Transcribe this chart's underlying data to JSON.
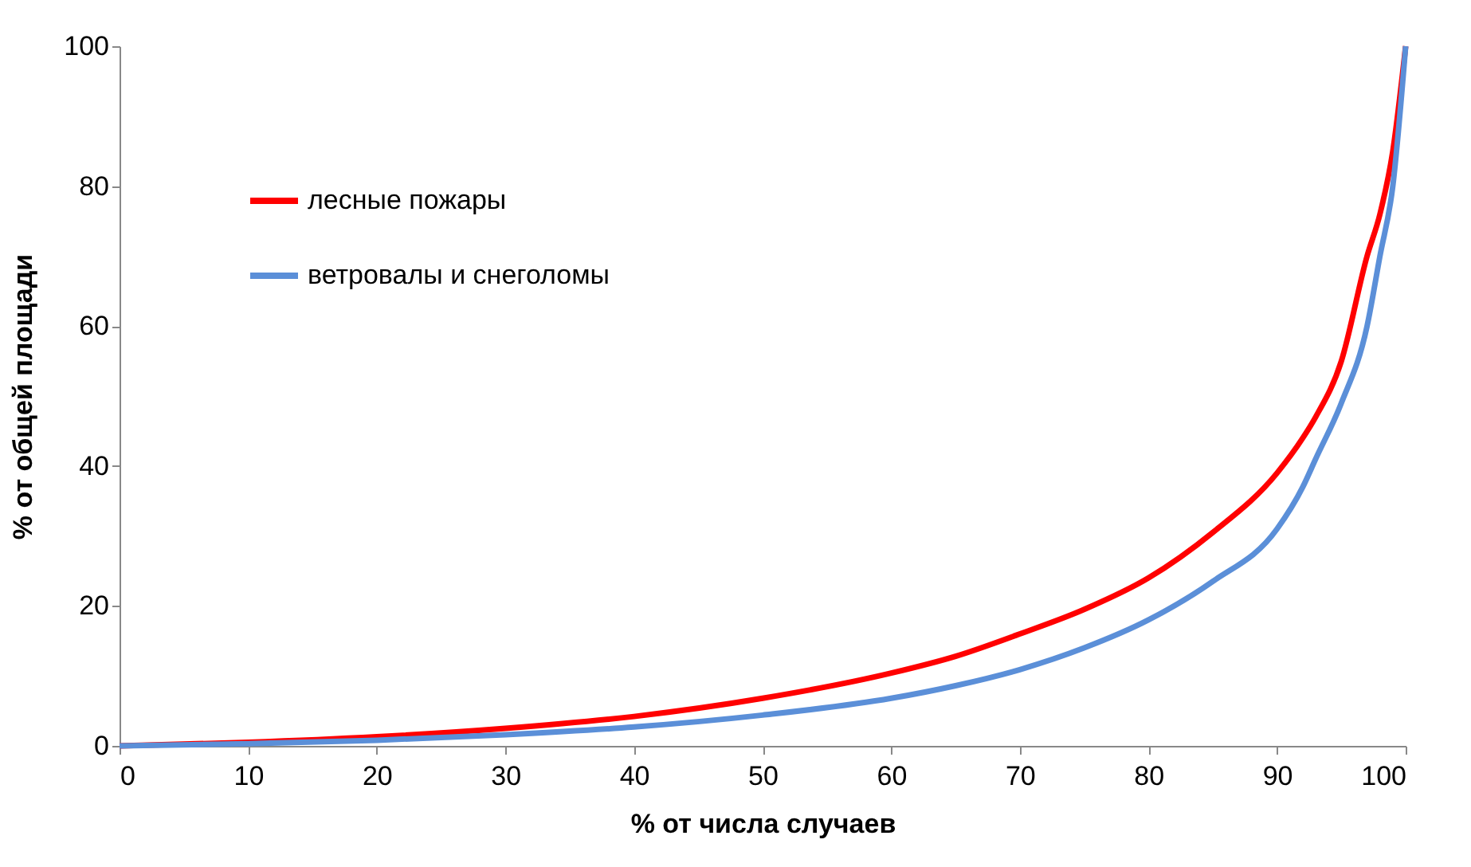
{
  "chart_data": {
    "type": "line",
    "xlabel": "% от числа случаев",
    "ylabel": "% от общей площади",
    "x": [
      0,
      10,
      20,
      30,
      40,
      50,
      60,
      65,
      70,
      75,
      80,
      85,
      90,
      92,
      93,
      95,
      97,
      98,
      99,
      100
    ],
    "series": [
      {
        "name": "лесные пожары",
        "color": "#ff0000",
        "values": [
          0,
          0.5,
          1.3,
          2.5,
          4.2,
          6.8,
          10.4,
          12.8,
          16,
          19.5,
          24,
          30.5,
          39,
          44,
          47,
          55,
          70,
          76,
          85,
          100
        ]
      },
      {
        "name": "ветровалы и снеголомы",
        "color": "#5b8fd8",
        "values": [
          0,
          0.3,
          0.8,
          1.6,
          2.7,
          4.4,
          6.8,
          8.6,
          10.9,
          14,
          18,
          23.5,
          31,
          37,
          41,
          49,
          60,
          70,
          80,
          100
        ]
      }
    ],
    "xlim": [
      0,
      100
    ],
    "ylim": [
      0,
      100
    ],
    "xticks": [
      0,
      10,
      20,
      30,
      40,
      50,
      60,
      70,
      80,
      90,
      100
    ],
    "yticks": [
      0,
      20,
      40,
      60,
      80,
      100
    ],
    "grid": false,
    "legend": "top left",
    "marker": "none",
    "line_style": "solid"
  }
}
